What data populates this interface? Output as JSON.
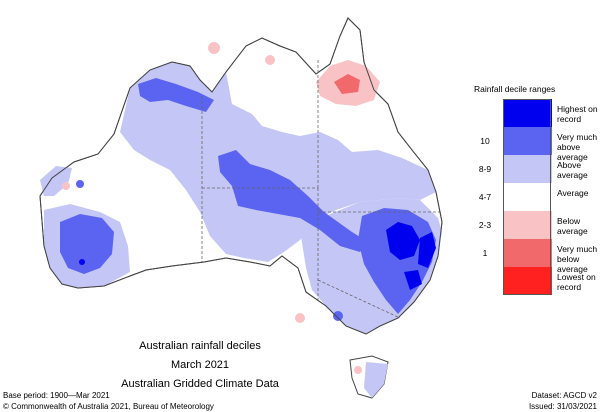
{
  "map": {
    "title_lines": [
      "Australian rainfall deciles",
      "March 2021",
      "Australian Gridded Climate Data"
    ]
  },
  "legend": {
    "title": "Rainfall decile ranges",
    "items": [
      {
        "range": "",
        "label": "Highest on record",
        "color": "#0000ee"
      },
      {
        "range": "10",
        "label": "Very much above average",
        "color": "#5a64f0"
      },
      {
        "range": "8-9",
        "label": "Above average",
        "color": "#c4c6f6"
      },
      {
        "range": "4-7",
        "label": "Average",
        "color": "#ffffff"
      },
      {
        "range": "2-3",
        "label": "Below average",
        "color": "#f9c3c6"
      },
      {
        "range": "1",
        "label": "Very much below average",
        "color": "#f2696c"
      },
      {
        "range": "",
        "label": "Lowest on record",
        "color": "#ff2020"
      }
    ]
  },
  "footer": {
    "base_period": "Base period: 1900—Mar 2021",
    "dataset": "Dataset: AGCD v2",
    "copyright": "© Commonwealth of Australia 2021, Bureau of Meteorology",
    "issued": "Issued: 31/03/2021"
  },
  "colors": {
    "outline": "#444444",
    "state_border": "#666666"
  }
}
